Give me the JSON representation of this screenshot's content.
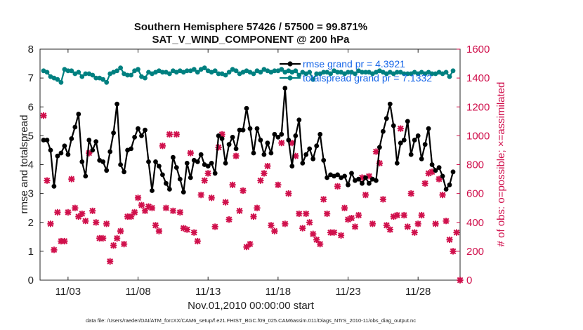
{
  "chart_data": {
    "type": "line",
    "title": "Southern Hemisphere 57426 / 57500 = 99.871%",
    "subtitle": "SAT_V_WIND_COMPONENT @ 200 hPa",
    "xlabel": "Nov.01,2010 00:00:00 start",
    "ylabel": "rmse and totalspread",
    "y2label": "# of obs: o=possible; ×=assimilated",
    "footer": "data file: /Users/raeder/DAI/ATM_forcXX/CAM6_setup/f.e21.FHIST_BGC.f09_025.CAM6assim.011/Diags_NTrS_2010-11/obs_diag_output.nc",
    "x_ticks": [
      "11/03",
      "11/08",
      "11/13",
      "11/18",
      "11/23",
      "11/28"
    ],
    "x_tick_days": [
      3,
      8,
      13,
      18,
      23,
      28
    ],
    "xlim": [
      1.0,
      31.0
    ],
    "ylim": [
      0,
      8
    ],
    "y_ticks": [
      "0",
      "1",
      "2",
      "3",
      "4",
      "5",
      "6",
      "7",
      "8"
    ],
    "y2lim": [
      0,
      1600
    ],
    "y2_ticks": [
      "0",
      "200",
      "400",
      "600",
      "800",
      "1000",
      "1200",
      "1400",
      "1600"
    ],
    "legend": [
      "rmse grand pr = 4.3921",
      "totalspread grand pr = 7.1332"
    ],
    "colors": {
      "rmse": "#000000",
      "spread": "#008080",
      "obs": "#d0104c",
      "legend_text": "#1565e8"
    },
    "series": [
      {
        "name": "rmse",
        "x_start_day": 1.25,
        "x_step_days": 0.25,
        "values": [
          4.85,
          4.85,
          4.5,
          3.25,
          4.3,
          4.4,
          4.65,
          4.35,
          4.9,
          5.3,
          5.75,
          4.1,
          3.6,
          4.85,
          4.5,
          4.8,
          4.15,
          4.1,
          3.8,
          4.45,
          5.1,
          6.1,
          4.0,
          3.75,
          4.5,
          4.55,
          4.95,
          5.25,
          5.0,
          5.2,
          4.1,
          3.1,
          4.1,
          3.95,
          3.65,
          3.35,
          3.15,
          4.25,
          3.9,
          3.5,
          3.05,
          4.05,
          3.55,
          4.15,
          4.1,
          4.35,
          4.0,
          3.95,
          4.05,
          3.7,
          5.0,
          4.9,
          4.05,
          4.7,
          4.95,
          4.55,
          5.2,
          5.2,
          5.95,
          5.25,
          4.4,
          5.25,
          4.85,
          4.35,
          4.75,
          4.4,
          5.05,
          4.95,
          5.05,
          6.65,
          4.85,
          3.95,
          5.0,
          5.55,
          4.05,
          4.35,
          4.55,
          4.2,
          4.65,
          5.05,
          4.15,
          3.55,
          3.65,
          3.6,
          3.65,
          3.55,
          3.6,
          3.3,
          3.7,
          3.45,
          3.5,
          3.35,
          3.55,
          3.35,
          3.5,
          3.45,
          4.6,
          5.15,
          5.6,
          6.1,
          5.35,
          4.05,
          4.75,
          4.85,
          5.5,
          4.35,
          4.85,
          5.0,
          4.2,
          4.7,
          5.25,
          4.0,
          3.8,
          3.9,
          3.6,
          3.15,
          3.3,
          3.75
        ]
      },
      {
        "name": "totalspread",
        "x_start_day": 1.25,
        "x_step_days": 0.25,
        "values": [
          7.25,
          7.2,
          7.05,
          7.0,
          6.95,
          6.85,
          7.3,
          7.25,
          7.25,
          7.15,
          7.2,
          7.05,
          7.15,
          7.15,
          7.1,
          7.0,
          7.0,
          6.95,
          6.85,
          7.15,
          7.2,
          7.25,
          7.35,
          7.15,
          7.1,
          7.1,
          7.25,
          7.3,
          7.05,
          7.0,
          7.2,
          7.15,
          7.2,
          7.25,
          7.2,
          7.2,
          7.15,
          7.25,
          7.2,
          7.25,
          7.2,
          7.25,
          7.25,
          7.3,
          7.2,
          7.3,
          7.35,
          7.25,
          7.2,
          7.25,
          7.15,
          7.15,
          7.1,
          7.2,
          7.3,
          7.25,
          7.15,
          7.2,
          7.25,
          7.2,
          7.15,
          7.25,
          7.2,
          7.3,
          7.25,
          7.2,
          7.25,
          7.25,
          7.3,
          7.2,
          7.25,
          7.2,
          7.25,
          7.1,
          7.2,
          7.15,
          7.2,
          6.95,
          7.15,
          7.15,
          7.2,
          7.2,
          7.15,
          7.25,
          7.2,
          7.2,
          7.15,
          7.2,
          7.2,
          7.15,
          7.25,
          7.2,
          7.2,
          7.2,
          7.15,
          7.2,
          7.25,
          7.2,
          7.15,
          7.2,
          7.15,
          7.2,
          7.2,
          7.15,
          7.15,
          7.15,
          7.2,
          7.15,
          7.2,
          7.15,
          7.2,
          7.15,
          7.15,
          7.2,
          7.15,
          7.2,
          7.05,
          7.25
        ]
      },
      {
        "name": "obs_assimilated",
        "axis": "right",
        "x_start_day": 1.25,
        "x_step_days": 0.25,
        "values": [
          1140,
          690,
          390,
          210,
          470,
          270,
          270,
          470,
          700,
          500,
          440,
          460,
          410,
          880,
          480,
          400,
          290,
          290,
          390,
          130,
          240,
          290,
          340,
          250,
          440,
          440,
          470,
          570,
          520,
          480,
          510,
          500,
          380,
          340,
          930,
          500,
          1010,
          480,
          1010,
          470,
          360,
          350,
          880,
          330,
          270,
          590,
          690,
          740,
          570,
          370,
          920,
          1010,
          540,
          420,
          660,
          860,
          480,
          620,
          230,
          250,
          440,
          500,
          690,
          740,
          790,
          380,
          340,
          660,
          950,
          390,
          600,
          950,
          860,
          460,
          360,
          460,
          400,
          320,
          280,
          250,
          560,
          460,
          330,
          330,
          650,
          310,
          500,
          420,
          430,
          370,
          450,
          710,
          590,
          720,
          390,
          890,
          810,
          560,
          380,
          350,
          440,
          450,
          1050,
          450,
          370,
          600,
          330,
          390,
          450,
          670,
          740,
          750,
          390,
          700,
          590,
          410,
          280,
          200,
          330,
          0
        ]
      }
    ]
  }
}
